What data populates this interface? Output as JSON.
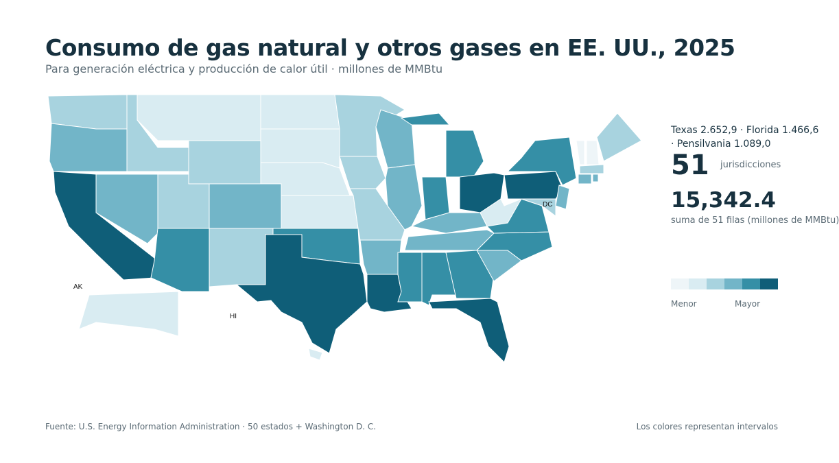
{
  "header": {
    "title": "Consumo de gas natural y otros gases en EE. UU., 2025",
    "subtitle": "Para generación eléctrica y producción de calor útil · millones de MMBtu"
  },
  "highlights": {
    "text": "Texas 2.652,9 · Florida 1.466,6 · Pensilvania 1.089,0"
  },
  "stats": {
    "count": 51,
    "count_label": "jurisdicciones",
    "total": "15,342.4",
    "total_label": "suma de 51 filas (millones de MMBtu)"
  },
  "legend": {
    "low": "Menor",
    "high": "Mayor",
    "colors": [
      "#eef5f8",
      "#d9ecf2",
      "#a8d3df",
      "#72b5c8",
      "#358fa6",
      "#0f5e78"
    ]
  },
  "map": {
    "labels": [
      "AK",
      "HI",
      "DC"
    ]
  },
  "footer": {
    "source": "Fuente: U.S. Energy Information Administration · 50 estados + Washington D. C.",
    "note": "Los colores representan intervalos"
  }
}
